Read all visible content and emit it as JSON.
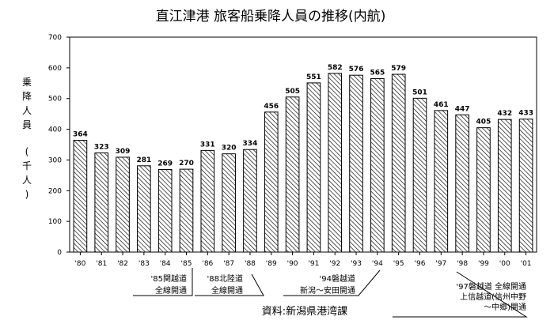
{
  "chart_data": {
    "type": "bar",
    "title": "直江津港 旅客船乗降人員の推移(内航)",
    "ylabel_chars": [
      "乗",
      "降",
      "人",
      "員",
      "(",
      "千",
      "人",
      ")"
    ],
    "ylim": [
      0,
      700
    ],
    "yticks": [
      0,
      100,
      200,
      300,
      400,
      500,
      600,
      700
    ],
    "grid": false,
    "bar_pattern": "diagonal-hatch",
    "categories": [
      "'80",
      "'81",
      "'82",
      "'83",
      "'84",
      "'85",
      "'86",
      "'87",
      "'88",
      "'89",
      "'90",
      "'91",
      "'92",
      "'93",
      "'94",
      "'95",
      "'96",
      "'97",
      "'98",
      "'99",
      "'00",
      "'01"
    ],
    "values": [
      364,
      323,
      309,
      281,
      269,
      270,
      331,
      320,
      334,
      456,
      505,
      551,
      582,
      576,
      565,
      579,
      501,
      461,
      447,
      405,
      432,
      433
    ],
    "annotations": [
      {
        "lines": [
          "'85関越道",
          "全線開通"
        ],
        "year_index": 5
      },
      {
        "lines": [
          "'88北陸道",
          "全線開通"
        ],
        "year_index": 8
      },
      {
        "lines": [
          "'94磐越道",
          "新潟〜安田開通"
        ],
        "year_index": 14
      },
      {
        "lines": [
          "'97磐越道 全線開通",
          "上信越道(信州中野",
          "〜中郷)開通"
        ],
        "year_index": 17
      }
    ],
    "source": "資料:新潟県港湾課"
  }
}
